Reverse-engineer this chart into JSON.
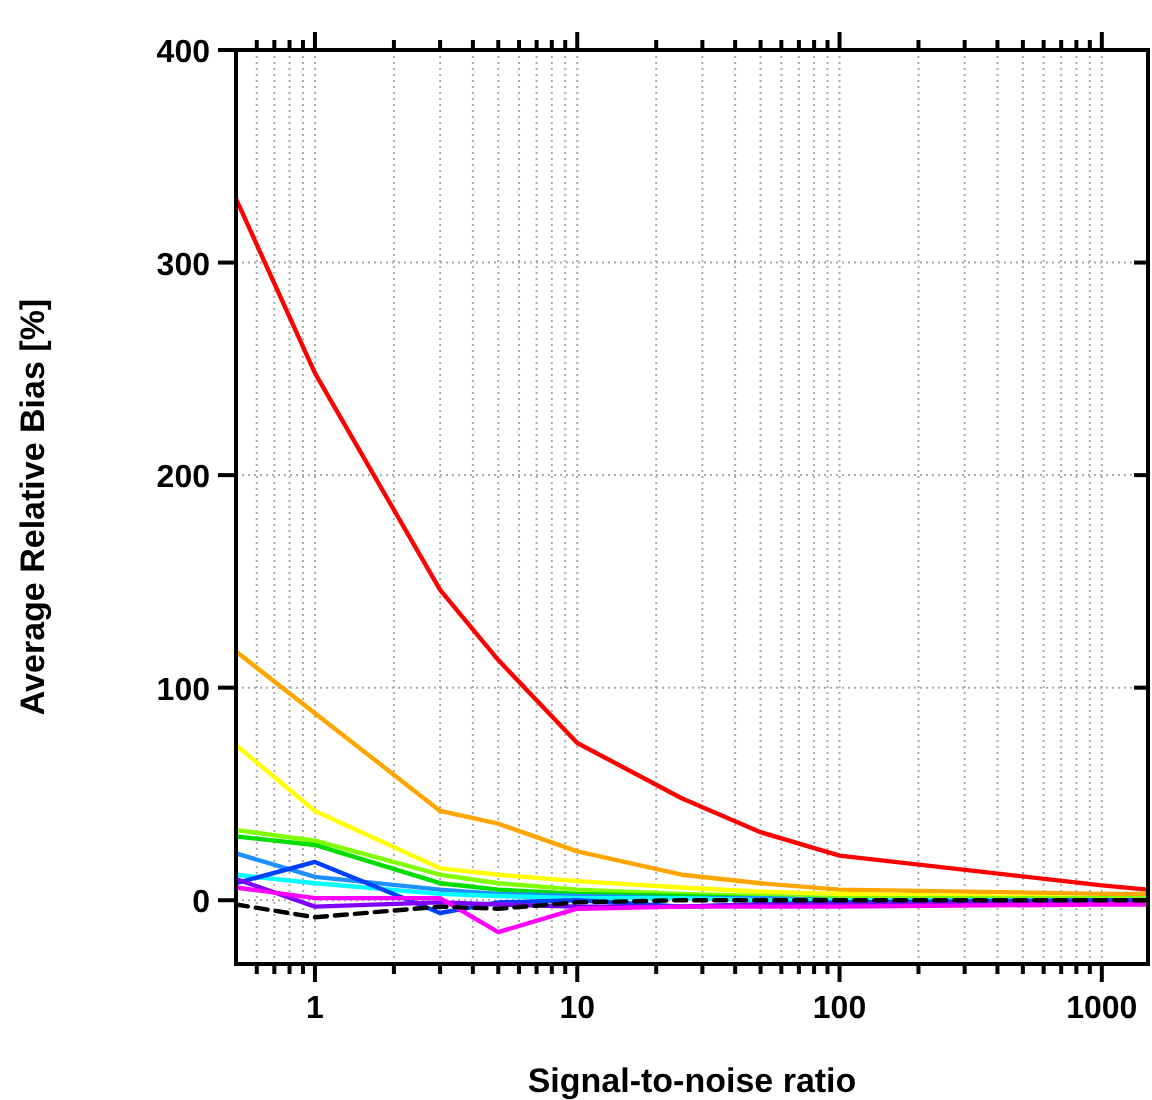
{
  "chart_data": {
    "type": "line",
    "xlabel": "Signal-to-noise ratio",
    "ylabel": "Average Relative Bias [%]",
    "log": "x",
    "grid": true,
    "line_style": "solid",
    "marker": "none",
    "x": [
      0.5,
      1,
      3,
      5,
      10,
      25,
      50,
      100,
      1000,
      1500
    ],
    "xlim": [
      0.5,
      1500
    ],
    "ylim": [
      -30,
      400
    ],
    "xticks": [
      {
        "value": 0.6,
        "label": null
      },
      {
        "value": 0.7,
        "label": null
      },
      {
        "value": 0.8,
        "label": null
      },
      {
        "value": 0.9,
        "label": null
      },
      1,
      {
        "value": 2,
        "label": null
      },
      {
        "value": 3,
        "label": null
      },
      {
        "value": 4,
        "label": null
      },
      {
        "value": 5,
        "label": null
      },
      {
        "value": 6,
        "label": null
      },
      {
        "value": 7,
        "label": null
      },
      {
        "value": 8,
        "label": null
      },
      {
        "value": 9,
        "label": null
      },
      10,
      {
        "value": 20,
        "label": null
      },
      {
        "value": 30,
        "label": null
      },
      {
        "value": 40,
        "label": null
      },
      {
        "value": 50,
        "label": null
      },
      {
        "value": 60,
        "label": null
      },
      {
        "value": 70,
        "label": null
      },
      {
        "value": 80,
        "label": null
      },
      {
        "value": 90,
        "label": null
      },
      100,
      {
        "value": 200,
        "label": null
      },
      {
        "value": 300,
        "label": null
      },
      {
        "value": 400,
        "label": null
      },
      {
        "value": 500,
        "label": null
      },
      {
        "value": 600,
        "label": null
      },
      {
        "value": 700,
        "label": null
      },
      {
        "value": 800,
        "label": null
      },
      {
        "value": 900,
        "label": null
      },
      1000
    ],
    "yticks": [
      0,
      100,
      200,
      300,
      400
    ],
    "series": [
      {
        "color": "#ff0000",
        "values": [
          330,
          248,
          146,
          113,
          74,
          48,
          32,
          21,
          7,
          5
        ]
      },
      {
        "color": "#ffa500",
        "values": [
          117,
          88,
          42,
          36,
          23,
          12,
          8,
          5,
          3,
          3
        ]
      },
      {
        "color": "#ffff00",
        "values": [
          73,
          42,
          15,
          12,
          9,
          6,
          4,
          3,
          1,
          1
        ]
      },
      {
        "color": "#80ff00",
        "values": [
          33,
          28,
          12,
          8,
          5,
          3,
          2,
          1,
          1,
          1
        ]
      },
      {
        "color": "#00dd00",
        "values": [
          30,
          26,
          8,
          5,
          3,
          2,
          1,
          0,
          0,
          0
        ]
      },
      {
        "color": "#1e90ff",
        "values": [
          22,
          11,
          5,
          3,
          2,
          1,
          1,
          0,
          0,
          0
        ]
      },
      {
        "color": "#00ffff",
        "values": [
          12,
          8,
          3,
          2,
          1,
          1,
          0,
          0,
          0,
          0
        ]
      },
      {
        "color": "#0040ff",
        "values": [
          8,
          18,
          -6,
          -1,
          0,
          -3,
          -2,
          -1,
          0,
          0
        ]
      },
      {
        "color": "#8000ff",
        "values": [
          10,
          -3,
          -1,
          -2,
          -3,
          -3,
          -2,
          -2,
          -1,
          -1
        ]
      },
      {
        "color": "#ff00ff",
        "values": [
          6,
          1,
          1,
          -15,
          -4,
          -3,
          -3,
          -3,
          -2,
          -2
        ]
      },
      {
        "color": "#000000",
        "line_style": "dashed",
        "values": [
          -2,
          -8,
          -3,
          -4,
          -1,
          0,
          0,
          0,
          0,
          0
        ]
      }
    ]
  }
}
